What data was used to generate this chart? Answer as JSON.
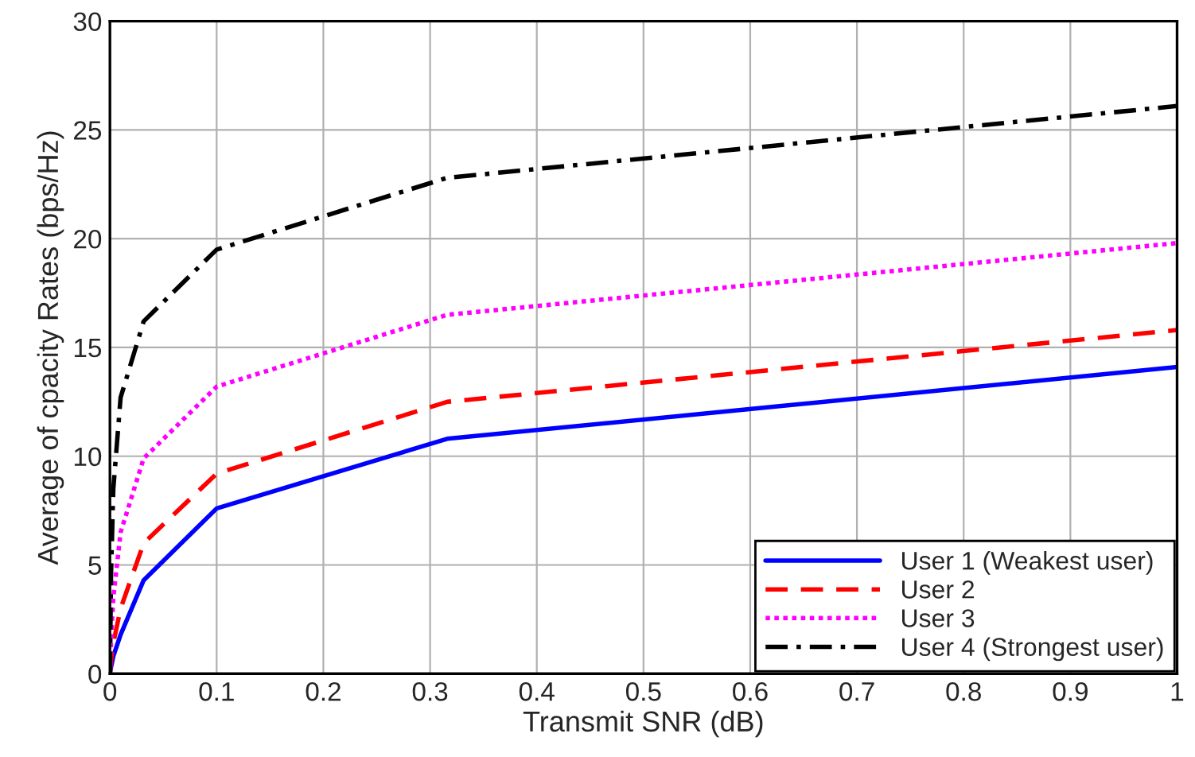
{
  "chart_data": {
    "type": "line",
    "xlabel": "Transmit SNR (dB)",
    "ylabel": "Average of cpacity Rates (bps/Hz)",
    "x": [
      0,
      0.001,
      0.00316,
      0.01,
      0.0316,
      0.1,
      0.316,
      1
    ],
    "series": [
      {
        "name": "User 1 (Weakest user)",
        "color": "#0000ff",
        "line_style": "solid",
        "values": [
          0,
          0.3,
          0.8,
          1.8,
          4.3,
          7.6,
          10.8,
          14.1
        ]
      },
      {
        "name": "User 2",
        "color": "#ff0000",
        "line_style": "dashed",
        "values": [
          0,
          0.6,
          1.4,
          3.0,
          6.0,
          9.2,
          12.5,
          15.8
        ]
      },
      {
        "name": "User 3",
        "color": "#ff00ff",
        "line_style": "dotted",
        "values": [
          0,
          1.5,
          3.5,
          6.5,
          9.9,
          13.2,
          16.5,
          19.8
        ]
      },
      {
        "name": "User 4 (Strongest user)",
        "color": "#000000",
        "line_style": "dashdot",
        "values": [
          0,
          4.5,
          8.5,
          12.7,
          16.2,
          19.5,
          22.8,
          26.1
        ]
      }
    ],
    "xlim": [
      0,
      1
    ],
    "ylim": [
      0,
      30
    ],
    "xticks": [
      0,
      0.1,
      0.2,
      0.3,
      0.4,
      0.5,
      0.6,
      0.7,
      0.8,
      0.9,
      1
    ],
    "yticks": [
      0,
      5,
      10,
      15,
      20,
      25,
      30
    ],
    "grid": true,
    "legend": "bottom right"
  }
}
